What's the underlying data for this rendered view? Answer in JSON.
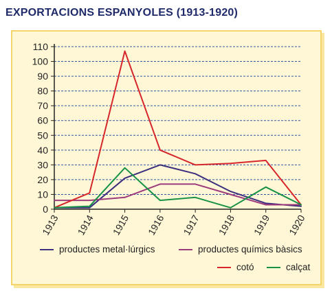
{
  "page": {
    "title": "EXPORTACIONS ESPANYOLES (1913-1920)"
  },
  "chart_data": {
    "type": "line",
    "title": "EXPORTACIONS ESPANYOLES (1913-1920)",
    "xlabel": "",
    "ylabel": "",
    "categories": [
      "1913",
      "1914",
      "1915",
      "1916",
      "1917",
      "1918",
      "1919",
      "1920"
    ],
    "ylim": [
      0,
      110
    ],
    "yticks": [
      0,
      10,
      20,
      30,
      40,
      50,
      60,
      70,
      80,
      90,
      100,
      110
    ],
    "grid": true,
    "legend_position": "bottom",
    "series": [
      {
        "name": "productes metal·lúrgics",
        "color": "#3b2f7e",
        "values": [
          1,
          1,
          21,
          30,
          24,
          12,
          4,
          2
        ]
      },
      {
        "name": "productes químics bàsics",
        "color": "#9c3a7c",
        "values": [
          6,
          6,
          8,
          17,
          17,
          10,
          3,
          3
        ]
      },
      {
        "name": "cotó",
        "color": "#d7262b",
        "values": [
          1,
          11,
          107,
          40,
          30,
          31,
          33,
          3
        ]
      },
      {
        "name": "calçat",
        "color": "#169147",
        "values": [
          1,
          2,
          28,
          6,
          8,
          1,
          15,
          3
        ]
      }
    ]
  }
}
